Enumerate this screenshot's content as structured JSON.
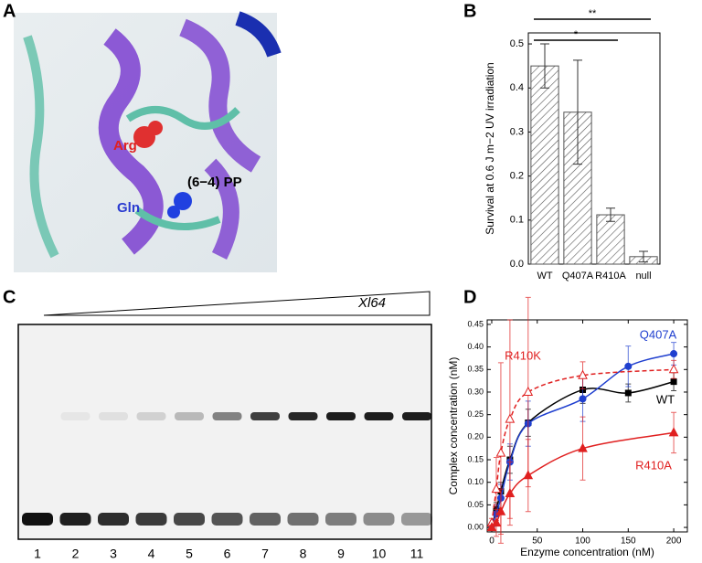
{
  "panel_labels": [
    "A",
    "B",
    "C",
    "D"
  ],
  "structure_labels": {
    "arg": "Arg",
    "gln": "Gln",
    "pp": "(6−4) PP"
  },
  "gel": {
    "titration_label": "Xl64",
    "lanes": [
      "1",
      "2",
      "3",
      "4",
      "5",
      "6",
      "7",
      "8",
      "9",
      "10",
      "11"
    ]
  },
  "chart_data": [
    {
      "type": "bar",
      "ylabel": "Survival at 0.6 J m−2 UV irradiation",
      "categories": [
        "WT",
        "Q407A",
        "R410A",
        "null"
      ],
      "values": [
        0.45,
        0.345,
        0.112,
        0.017
      ],
      "errors": [
        0.05,
        0.118,
        0.015,
        0.012
      ],
      "color": "#555555",
      "ylim": [
        0,
        0.525
      ],
      "yticks": [
        {
          "value": 0,
          "label": "0.0"
        },
        0.1,
        0.2,
        0.3,
        0.4,
        0.5
      ],
      "significance": [
        {
          "label": "*",
          "from": 0,
          "to": 2
        },
        {
          "label": "**",
          "from": 0,
          "to": 3
        }
      ]
    },
    {
      "type": "scatter",
      "xlabel": "Enzyme concentration (nM)",
      "ylabel": "Complex concentration (nM)",
      "xlim": [
        -5,
        215
      ],
      "ylim": [
        -0.01,
        0.46
      ],
      "xticks": [
        0,
        50,
        100,
        150,
        200
      ],
      "yticks": [
        {
          "value": 0,
          "label": "0.00"
        },
        0.05,
        {
          "value": 0.1,
          "label": "0.10"
        },
        0.15,
        {
          "value": 0.2,
          "label": "0.20"
        },
        0.25,
        {
          "value": 0.3,
          "label": "0.30"
        },
        0.35,
        {
          "value": 0.4,
          "label": "0.40"
        },
        0.45
      ],
      "series": [
        {
          "name": "WT",
          "color": "#000000",
          "marker": "square",
          "dashed": false,
          "x": [
            0,
            5,
            10,
            20,
            40,
            100,
            150,
            200
          ],
          "values": [
            0,
            0.04,
            0.08,
            0.15,
            0.232,
            0.305,
            0.298,
            0.323
          ],
          "errors": [
            0.005,
            0.015,
            0.02,
            0.03,
            0.03,
            0.03,
            0.02,
            0.02
          ]
        },
        {
          "name": "Q407A",
          "color": "#1f3fcf",
          "marker": "circle",
          "dashed": false,
          "x": [
            0,
            5,
            10,
            20,
            40,
            100,
            150,
            200
          ],
          "values": [
            0.005,
            0.03,
            0.065,
            0.145,
            0.23,
            0.285,
            0.357,
            0.385
          ],
          "errors": [
            0.005,
            0.02,
            0.03,
            0.04,
            0.05,
            0.05,
            0.045,
            0.025
          ]
        },
        {
          "name": "R410K",
          "color": "#e02020",
          "marker": "triangle-open",
          "dashed": true,
          "x": [
            0,
            5,
            10,
            20,
            40,
            100,
            200
          ],
          "values": [
            0.01,
            0.085,
            0.165,
            0.24,
            0.3,
            0.337,
            0.35
          ],
          "errors": [
            0.01,
            0.07,
            0.2,
            0.22,
            0.21,
            0.03,
            0.02
          ]
        },
        {
          "name": "R410A",
          "color": "#e02020",
          "marker": "triangle",
          "dashed": false,
          "x": [
            0,
            5,
            10,
            20,
            40,
            100,
            200
          ],
          "values": [
            0,
            0.01,
            0.035,
            0.075,
            0.115,
            0.175,
            0.21
          ],
          "errors": [
            0.005,
            0.03,
            0.05,
            0.07,
            0.08,
            0.07,
            0.045
          ]
        }
      ]
    }
  ]
}
